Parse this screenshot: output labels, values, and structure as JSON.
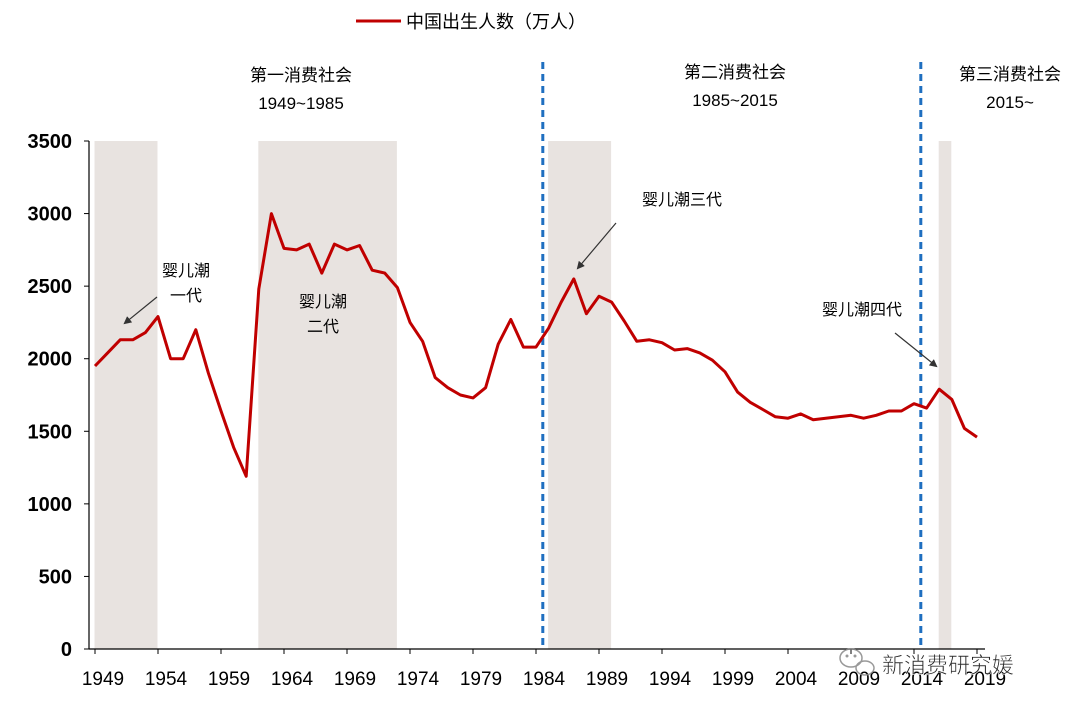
{
  "chart_data": {
    "type": "line",
    "series": [
      {
        "name": "中国出生人数（万人）",
        "color": "#c00000",
        "x": [
          1949,
          1950,
          1951,
          1952,
          1953,
          1954,
          1955,
          1956,
          1957,
          1958,
          1959,
          1960,
          1961,
          1962,
          1963,
          1964,
          1965,
          1966,
          1967,
          1968,
          1969,
          1970,
          1971,
          1972,
          1973,
          1974,
          1975,
          1976,
          1977,
          1978,
          1979,
          1980,
          1981,
          1982,
          1983,
          1984,
          1985,
          1986,
          1987,
          1988,
          1989,
          1990,
          1991,
          1992,
          1993,
          1994,
          1995,
          1996,
          1997,
          1998,
          1999,
          2000,
          2001,
          2002,
          2003,
          2004,
          2005,
          2006,
          2007,
          2008,
          2009,
          2010,
          2011,
          2012,
          2013,
          2014,
          2015,
          2016,
          2017,
          2018,
          2019
        ],
        "values": [
          1950,
          2040,
          2130,
          2130,
          2180,
          2290,
          2000,
          2000,
          2200,
          1900,
          1640,
          1390,
          1190,
          2480,
          3000,
          2760,
          2750,
          2790,
          2590,
          2790,
          2750,
          2780,
          2610,
          2590,
          2490,
          2250,
          2120,
          1870,
          1800,
          1750,
          1730,
          1800,
          2100,
          2270,
          2080,
          2080,
          2210,
          2390,
          2550,
          2310,
          2430,
          2390,
          2260,
          2120,
          2130,
          2110,
          2060,
          2070,
          2040,
          1990,
          1910,
          1770,
          1700,
          1650,
          1600,
          1590,
          1620,
          1580,
          1590,
          1600,
          1610,
          1590,
          1610,
          1640,
          1640,
          1690,
          1660,
          1790,
          1720,
          1520,
          1460
        ]
      }
    ],
    "ylim": [
      0,
      3500
    ],
    "yticks": [
      0,
      500,
      1000,
      1500,
      2000,
      2500,
      3000,
      3500
    ],
    "xticks": [
      "1949",
      "1954",
      "1959",
      "1964",
      "1969",
      "1974",
      "1979",
      "1984",
      "1989",
      "1994",
      "1999",
      "2004",
      "2009",
      "2014",
      "2019"
    ],
    "legend_position": "top-center",
    "shaded_periods": [
      {
        "start": 1949,
        "end": 1953
      },
      {
        "start": 1962,
        "end": 1972
      },
      {
        "start": 1985,
        "end": 1989
      },
      {
        "start": 2016,
        "end": 2016
      }
    ],
    "dividers": [
      1984.5,
      2014.5
    ],
    "era_labels": [
      {
        "line1": "第一消费社会",
        "line2": "1949~1985"
      },
      {
        "line1": "第二消费社会",
        "line2": "1985~2015"
      },
      {
        "line1": "第三消费社会",
        "line2": "2015~"
      }
    ],
    "annotations": [
      {
        "line1": "婴儿潮",
        "line2": "一代"
      },
      {
        "line1": "婴儿潮",
        "line2": "二代"
      },
      {
        "line1": "婴儿潮三代",
        "line2": ""
      },
      {
        "line1": "婴儿潮四代",
        "line2": ""
      }
    ],
    "watermark": "新消费研究媛"
  }
}
